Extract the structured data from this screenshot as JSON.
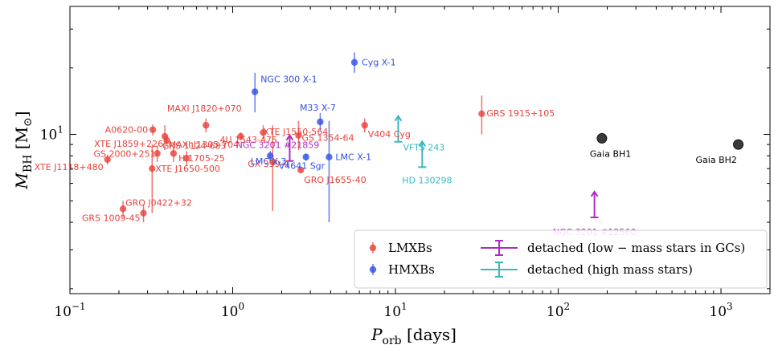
{
  "chart_data": {
    "type": "scatter",
    "xscale": "log",
    "yscale": "log",
    "xlim": [
      0.1,
      2000
    ],
    "ylim": [
      1.9,
      38
    ],
    "xlabel": {
      "main": "P",
      "sub": "orb",
      "rest": " [days]"
    },
    "ylabel": {
      "main": "M",
      "sub": "BH",
      "rest": " [M",
      "rest_sub": "⊙",
      "close": "]"
    },
    "x_ticks": [
      {
        "value": 0.1,
        "base": "10",
        "exp": "−1"
      },
      {
        "value": 1,
        "base": "10",
        "exp": "0"
      },
      {
        "value": 10,
        "base": "10",
        "exp": "1"
      },
      {
        "value": 100,
        "base": "10",
        "exp": "2"
      },
      {
        "value": 1000,
        "base": "10",
        "exp": "3"
      }
    ],
    "y_ticks": [
      {
        "value": 10,
        "base": "10",
        "exp": "1"
      }
    ],
    "colors": {
      "LMXBs": "#e8413a",
      "HMXBs": "#2f4fe8",
      "detached_gc": "#b02cc0",
      "detached_high": "#3bb8bd",
      "gaia": "#3a3a3a"
    },
    "series": [
      {
        "name": "LMXBs",
        "color_key": "LMXBs",
        "points": [
          {
            "label": "GRS 1915+105",
            "x": 33.9,
            "y": 12.4,
            "ylo": 10.0,
            "yhi": 15.0
          },
          {
            "label": "V404 Cyg",
            "x": 6.47,
            "y": 11.0,
            "ylo": 10.2,
            "yhi": 11.8
          },
          {
            "label": "XTE J1550-564",
            "x": 1.54,
            "y": 10.2,
            "ylo": 9.5,
            "yhi": 11.0
          },
          {
            "label": "MAXI J1820+070",
            "x": 0.685,
            "y": 11.0,
            "ylo": 10.2,
            "yhi": 11.8
          },
          {
            "label": "4U 1543-475",
            "x": 1.12,
            "y": 9.8,
            "ylo": 9.4,
            "yhi": 10.2
          },
          {
            "label": "GS 1354-64",
            "x": 2.54,
            "y": 9.9,
            "ylo": 8.5,
            "yhi": 11.5
          },
          {
            "label": "A0620-00",
            "x": 0.323,
            "y": 10.5,
            "ylo": 9.9,
            "yhi": 11.1
          },
          {
            "label": "XTE J1859+226",
            "x": 0.383,
            "y": 9.8,
            "ylo": 8.5,
            "yhi": 11.0
          },
          {
            "label": "MAXI J1305-704",
            "x": 0.394,
            "y": 9.4,
            "ylo": 8.9,
            "yhi": 9.9
          },
          {
            "label": "GRS 1124-683",
            "x": 0.433,
            "y": 8.2,
            "ylo": 7.5,
            "yhi": 8.8
          },
          {
            "label": "GS 2000+251",
            "x": 0.344,
            "y": 8.2,
            "ylo": 7.5,
            "yhi": 8.9
          },
          {
            "label": "H 1705-25",
            "x": 0.521,
            "y": 7.8,
            "ylo": 7.2,
            "yhi": 8.4
          },
          {
            "label": "XTE J1118+480",
            "x": 0.17,
            "y": 7.7,
            "ylo": 7.3,
            "yhi": 8.1
          },
          {
            "label": "XTE J1650-500",
            "x": 0.32,
            "y": 7.0,
            "ylo": 4.4,
            "yhi": 9.0
          },
          {
            "label": "GX 339-4",
            "x": 1.76,
            "y": 7.5,
            "ylo": 4.5,
            "yhi": 11.0
          },
          {
            "label": "GRO J1655-40",
            "x": 2.62,
            "y": 6.9,
            "ylo": 6.7,
            "yhi": 7.1
          },
          {
            "label": "GRO J0422+32",
            "x": 0.212,
            "y": 4.6,
            "ylo": 4.2,
            "yhi": 5.0
          },
          {
            "label": "GRS 1009-45",
            "x": 0.283,
            "y": 4.4,
            "ylo": 4.0,
            "yhi": 4.8
          }
        ]
      },
      {
        "name": "HMXBs",
        "color_key": "HMXBs",
        "points": [
          {
            "label": "Cyg X-1",
            "x": 5.6,
            "y": 21.2,
            "ylo": 19.0,
            "yhi": 23.5
          },
          {
            "label": "NGC 300 X-1",
            "x": 1.37,
            "y": 15.6,
            "ylo": 12.6,
            "yhi": 19.0
          },
          {
            "label": "M33 X-7",
            "x": 3.45,
            "y": 11.4,
            "ylo": 10.4,
            "yhi": 12.5
          },
          {
            "label": "LMC X-1",
            "x": 3.91,
            "y": 7.9,
            "ylo": 4.0,
            "yhi": 11.5
          },
          {
            "label": "LMC X-3",
            "x": 1.7,
            "y": 8.0,
            "ylo": 7.6,
            "yhi": 8.4
          },
          {
            "label": "V4641 Sgr",
            "x": 2.82,
            "y": 7.9,
            "ylo": 7.6,
            "yhi": 8.2
          }
        ]
      },
      {
        "name": "detached (low − mass stars in GCs)",
        "color_key": "detached_gc",
        "points": [
          {
            "label": "NGC 3201 #21859",
            "x": 2.24,
            "y": 8.1,
            "lower_limit": true
          },
          {
            "label": "NGC 3201 #12560",
            "x": 167,
            "y": 4.5,
            "lower_limit": true
          }
        ]
      },
      {
        "name": "detached (high mass stars)",
        "color_key": "detached_high",
        "points": [
          {
            "label": "VFTS 243",
            "x": 10.4,
            "y": 9.9,
            "lower_limit": true
          },
          {
            "label": "HD 130298",
            "x": 14.6,
            "y": 7.6,
            "lower_limit": true
          }
        ]
      },
      {
        "color_key": "gaia",
        "points": [
          {
            "label": "Gaia BH1",
            "x": 185.6,
            "y": 9.6
          },
          {
            "label": "Gaia BH2",
            "x": 1277,
            "y": 9.0
          }
        ]
      }
    ],
    "legend": {
      "placement": "lower-right",
      "entries": [
        {
          "text": "LMXBs",
          "color_key": "LMXBs",
          "marker": "dot"
        },
        {
          "text": "HMXBs",
          "color_key": "HMXBs",
          "marker": "dot"
        },
        {
          "text": "detached (low − mass stars in GCs)",
          "color_key": "detached_gc",
          "marker": "errorbar"
        },
        {
          "text": "detached (high mass stars)",
          "color_key": "detached_high",
          "marker": "errorbar"
        }
      ]
    }
  }
}
